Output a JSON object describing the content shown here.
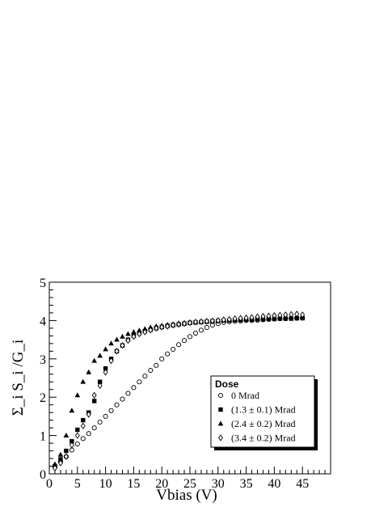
{
  "chart_data": {
    "type": "scatter",
    "xlabel": "Vbias (V)",
    "ylabel": "Σ_i S_i /G_i",
    "xlim": [
      0,
      50
    ],
    "ylim": [
      0,
      5
    ],
    "x_ticks": [
      "0",
      "5",
      "10",
      "15",
      "20",
      "25",
      "30",
      "35",
      "40",
      "45"
    ],
    "y_ticks": [
      "0",
      "1",
      "2",
      "3",
      "4",
      "5"
    ],
    "grid": false,
    "legend_position": "right",
    "legend_title": "Dose",
    "series": [
      {
        "name": "0 Mrad",
        "marker": "open-circle",
        "x": [
          1,
          2,
          3,
          4,
          5,
          6,
          7,
          8,
          9,
          10,
          11,
          12,
          13,
          14,
          15,
          16,
          17,
          18,
          19,
          20,
          21,
          22,
          23,
          24,
          25,
          26,
          27,
          28,
          29,
          30,
          31,
          32,
          33,
          34,
          35,
          36,
          37,
          38,
          39,
          40,
          41,
          42,
          43,
          44,
          45
        ],
        "y": [
          0.18,
          0.32,
          0.45,
          0.62,
          0.78,
          0.92,
          1.05,
          1.2,
          1.35,
          1.5,
          1.65,
          1.8,
          1.95,
          2.1,
          2.25,
          2.4,
          2.55,
          2.7,
          2.83,
          3.0,
          3.13,
          3.25,
          3.37,
          3.48,
          3.58,
          3.67,
          3.75,
          3.82,
          3.88,
          3.92,
          3.95,
          3.97,
          3.98,
          3.99,
          4.0,
          4.0,
          4.01,
          4.02,
          4.03,
          4.04,
          4.05,
          4.05,
          4.06,
          4.06,
          4.07
        ]
      },
      {
        "name": "(1.3 ± 0.1) Mrad",
        "marker": "filled-square",
        "x": [
          1,
          2,
          3,
          4,
          5,
          6,
          7,
          8,
          9,
          10,
          11,
          12,
          13,
          14,
          15,
          16,
          17,
          18,
          19,
          20,
          21,
          22,
          23,
          24,
          25,
          26,
          27,
          28,
          29,
          30,
          31,
          32,
          33,
          34,
          35,
          36,
          37,
          38,
          39,
          40,
          41,
          42,
          43,
          44,
          45
        ],
        "y": [
          0.2,
          0.38,
          0.6,
          0.85,
          1.15,
          1.4,
          1.6,
          1.9,
          2.4,
          2.75,
          3.0,
          3.2,
          3.35,
          3.5,
          3.6,
          3.67,
          3.72,
          3.76,
          3.8,
          3.83,
          3.86,
          3.88,
          3.9,
          3.92,
          3.94,
          3.95,
          3.96,
          3.97,
          3.98,
          3.99,
          4.0,
          4.0,
          4.01,
          4.01,
          4.02,
          4.02,
          4.03,
          4.03,
          4.04,
          4.04,
          4.05,
          4.05,
          4.05,
          4.06,
          4.06
        ]
      },
      {
        "name": "(2.4 ± 0.2) Mrad",
        "marker": "filled-triangle",
        "x": [
          1,
          2,
          3,
          4,
          5,
          6,
          7,
          8,
          9,
          10,
          11,
          12,
          13,
          14,
          15,
          16,
          17,
          18,
          19,
          20,
          21,
          22,
          23,
          24,
          25,
          26,
          27,
          28,
          29,
          30,
          31,
          32,
          33,
          34,
          35,
          36,
          37,
          38,
          39,
          40,
          41,
          42,
          43,
          44,
          45
        ],
        "y": [
          0.25,
          0.5,
          1.0,
          1.65,
          2.05,
          2.4,
          2.65,
          2.95,
          3.08,
          3.25,
          3.4,
          3.5,
          3.58,
          3.65,
          3.7,
          3.74,
          3.78,
          3.82,
          3.85,
          3.87,
          3.89,
          3.91,
          3.93,
          3.94,
          3.96,
          3.97,
          3.98,
          3.99,
          4.0,
          4.01,
          4.02,
          4.03,
          4.03,
          4.04,
          4.05,
          4.05,
          4.06,
          4.06,
          4.07,
          4.08,
          4.08,
          4.09,
          4.1,
          4.1,
          4.1
        ]
      },
      {
        "name": "(3.4 ± 0.2) Mrad",
        "marker": "open-diamond",
        "x": [
          1,
          2,
          3,
          4,
          5,
          6,
          7,
          8,
          9,
          10,
          11,
          12,
          13,
          14,
          15,
          16,
          17,
          18,
          19,
          20,
          21,
          22,
          23,
          24,
          25,
          26,
          27,
          28,
          29,
          30,
          31,
          32,
          33,
          34,
          35,
          36,
          37,
          38,
          39,
          40,
          41,
          42,
          43,
          44,
          45
        ],
        "y": [
          0.15,
          0.28,
          0.45,
          0.75,
          1.0,
          1.25,
          1.55,
          2.05,
          2.3,
          2.65,
          2.95,
          3.2,
          3.35,
          3.48,
          3.58,
          3.65,
          3.7,
          3.75,
          3.8,
          3.83,
          3.85,
          3.88,
          3.9,
          3.92,
          3.94,
          3.96,
          3.97,
          3.98,
          3.99,
          4.0,
          4.02,
          4.03,
          4.05,
          4.06,
          4.07,
          4.08,
          4.1,
          4.11,
          4.12,
          4.13,
          4.14,
          4.15,
          4.16,
          4.17,
          4.15
        ]
      }
    ]
  }
}
